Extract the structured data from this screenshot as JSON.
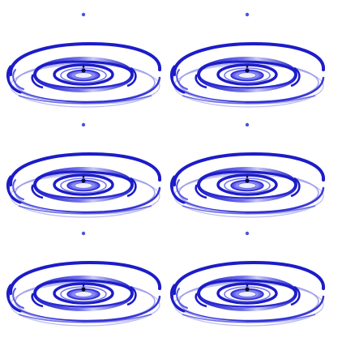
{
  "image": {
    "subject": "water-drop-ripple",
    "layout": {
      "columns": 2,
      "rows": 3
    },
    "colors": {
      "background": "#ffffff",
      "ripple_dark": "#1c1cc8",
      "ripple_mid": "#3a3ae0",
      "ripple_light": "#a8a8f2",
      "drop_core": "#0a0a30",
      "droplet": "#4a55d8"
    }
  }
}
